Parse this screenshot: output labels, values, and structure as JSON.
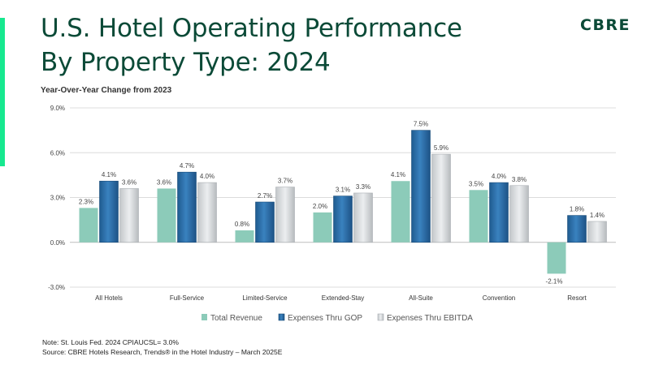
{
  "header": {
    "title_line1": "U.S. Hotel Operating Performance",
    "title_line2": "By Property Type: 2024",
    "logo": "CBRE",
    "subtitle": "Year-Over-Year Change from 2023"
  },
  "colors": {
    "accent": "#17e88f",
    "title": "#0b4a37",
    "total_revenue": "#8ccbb9",
    "expenses_gop": "#2c6fa8",
    "expenses_ebitda": "#d9dcde"
  },
  "chart_data": {
    "type": "bar",
    "title": "",
    "xlabel": "",
    "ylabel": "",
    "ylim": [
      -3.0,
      9.0
    ],
    "yticks": [
      -3.0,
      0.0,
      3.0,
      6.0,
      9.0
    ],
    "ytick_labels": [
      "-3.0%",
      "0.0%",
      "3.0%",
      "6.0%",
      "9.0%"
    ],
    "grid": true,
    "legend_position": "bottom",
    "categories": [
      "All Hotels",
      "Full-Service",
      "Limited-Service",
      "Extended-Stay",
      "All-Suite",
      "Convention",
      "Resort"
    ],
    "series": [
      {
        "name": "Total Revenue",
        "values": [
          2.3,
          3.6,
          0.8,
          2.0,
          4.1,
          3.5,
          -2.1
        ],
        "labels": [
          "2.3%",
          "3.6%",
          "0.8%",
          "2.0%",
          "4.1%",
          "3.5%",
          "-2.1%"
        ]
      },
      {
        "name": "Expenses Thru GOP",
        "values": [
          4.1,
          4.7,
          2.7,
          3.1,
          7.5,
          4.0,
          1.8
        ],
        "labels": [
          "4.1%",
          "4.7%",
          "2.7%",
          "3.1%",
          "7.5%",
          "4.0%",
          "1.8%"
        ]
      },
      {
        "name": "Expenses Thru EBITDA",
        "values": [
          3.6,
          4.0,
          3.7,
          3.3,
          5.9,
          3.8,
          1.4
        ],
        "labels": [
          "3.6%",
          "4.0%",
          "3.7%",
          "3.3%",
          "5.9%",
          "3.8%",
          "1.4%"
        ]
      }
    ]
  },
  "footnote": {
    "line1": "Note:  St. Louis Fed. 2024 CPIAUCSL= 3.0%",
    "line2": "Source: CBRE Hotels Research, Trends® in the Hotel Industry – March 2025E"
  }
}
